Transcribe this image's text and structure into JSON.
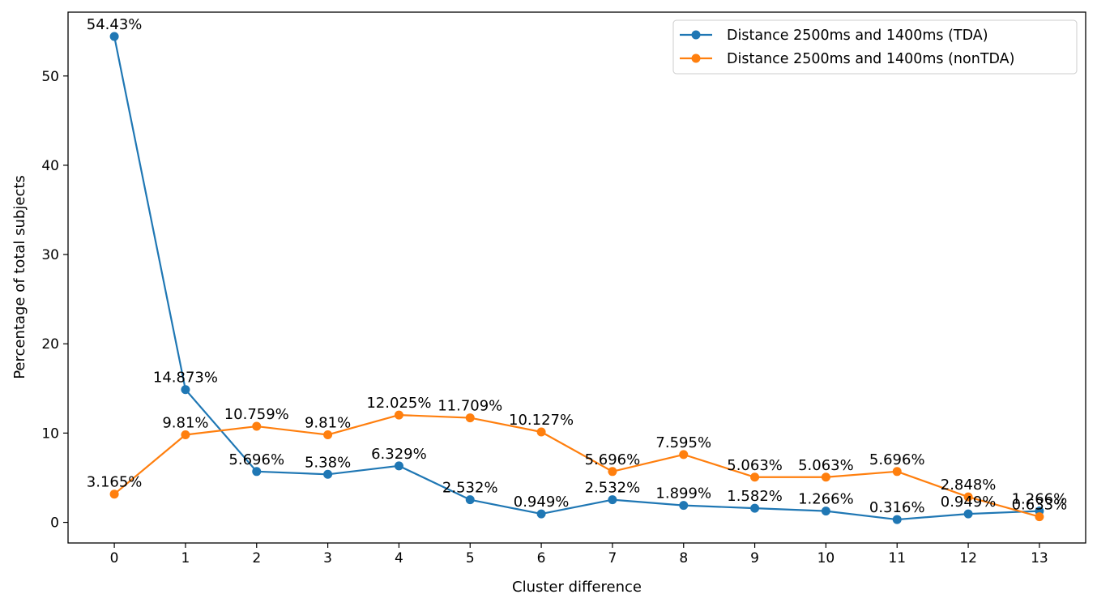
{
  "chart_data": {
    "type": "line",
    "title": "",
    "xlabel": "Cluster difference",
    "ylabel": "Percentage of total subjects",
    "x": [
      0,
      1,
      2,
      3,
      4,
      5,
      6,
      7,
      8,
      9,
      10,
      11,
      12,
      13
    ],
    "x_ticks": [
      "0",
      "1",
      "2",
      "3",
      "4",
      "5",
      "6",
      "7",
      "8",
      "9",
      "10",
      "11",
      "12",
      "13"
    ],
    "y_ticks": [
      "0",
      "10",
      "20",
      "30",
      "40",
      "50"
    ],
    "xlim": [
      -0.65,
      13.65
    ],
    "ylim": [
      -2.31,
      57.15
    ],
    "grid": false,
    "legend_position": "top-right",
    "series": [
      {
        "name": "Distance 2500ms and 1400ms (TDA)",
        "color": "#1f77b4",
        "marker": "circle",
        "values": [
          54.43,
          14.873,
          5.696,
          5.38,
          6.329,
          2.532,
          0.949,
          2.532,
          1.899,
          1.582,
          1.266,
          0.316,
          0.949,
          1.266
        ],
        "labels": [
          "54.43%",
          "14.873%",
          "5.696%",
          "5.38%",
          "6.329%",
          "2.532%",
          "0.949%",
          "2.532%",
          "1.899%",
          "1.582%",
          "1.266%",
          "0.316%",
          "0.949%",
          "1.266%"
        ]
      },
      {
        "name": "Distance 2500ms and 1400ms (nonTDA)",
        "color": "#ff7f0e",
        "marker": "circle",
        "values": [
          3.165,
          9.81,
          10.759,
          9.81,
          12.025,
          11.709,
          10.127,
          5.696,
          7.595,
          5.063,
          5.063,
          5.696,
          2.848,
          0.633
        ],
        "labels": [
          "3.165%",
          "9.81%",
          "10.759%",
          "9.81%",
          "12.025%",
          "11.709%",
          "10.127%",
          "5.696%",
          "7.595%",
          "5.063%",
          "5.063%",
          "5.696%",
          "2.848%",
          "0.633%"
        ]
      }
    ]
  }
}
